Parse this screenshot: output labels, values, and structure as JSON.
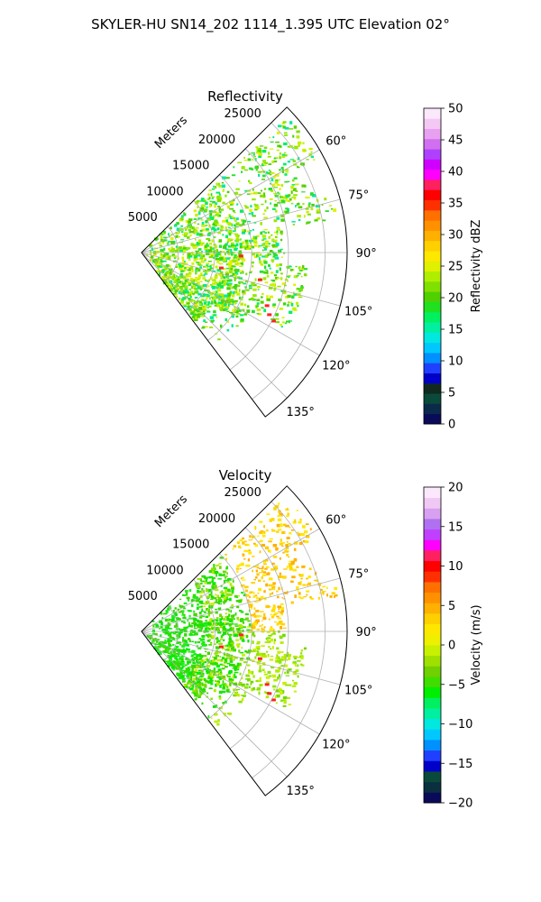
{
  "figure": {
    "suptitle": "SKYLER-HU  SN14_202  1114_1.395 UTC Elevation 02°"
  },
  "chart_data": [
    {
      "type": "heatmap",
      "projection": "polar-sector",
      "title": "Reflectivity",
      "range_label": "Meters",
      "r_ticks": [
        5000,
        10000,
        15000,
        20000,
        25000
      ],
      "r_tick_labels": [
        "5000",
        "10000",
        "15000",
        "20000",
        "25000"
      ],
      "rlim": [
        0,
        28000
      ],
      "theta_range_deg": [
        45,
        143
      ],
      "theta_ticks": [
        60,
        75,
        90,
        105,
        120,
        135
      ],
      "theta_tick_labels": [
        "60°",
        "75°",
        "90°",
        "105°",
        "120°",
        "135°"
      ],
      "grid": true,
      "field": "reflectivity",
      "colorbar": {
        "label": "Reflectivity dBZ",
        "min": 0,
        "max": 50,
        "ticks": [
          0,
          5,
          10,
          15,
          20,
          25,
          30,
          35,
          40,
          45,
          50
        ],
        "tick_labels": [
          "0",
          "5",
          "10",
          "15",
          "20",
          "25",
          "30",
          "35",
          "40",
          "45",
          "50"
        ],
        "colors": [
          "#0a0a5a",
          "#0a2a4a",
          "#0a4a3a",
          "#102a20",
          "#0000c8",
          "#2040ff",
          "#0090ff",
          "#00c8ff",
          "#00e8e0",
          "#00f0a0",
          "#00f060",
          "#20e020",
          "#50d000",
          "#80e000",
          "#b0ee00",
          "#e0f000",
          "#ffe800",
          "#ffd000",
          "#ffb000",
          "#ff9000",
          "#ff7000",
          "#ff3000",
          "#ff0000",
          "#ff2060",
          "#ff00ff",
          "#d000ff",
          "#b040ff",
          "#d070f0",
          "#e8a0f0",
          "#f4c8f4",
          "#fce8fc"
        ]
      }
    },
    {
      "type": "heatmap",
      "projection": "polar-sector",
      "title": "Velocity",
      "range_label": "Meters",
      "r_ticks": [
        5000,
        10000,
        15000,
        20000,
        25000
      ],
      "r_tick_labels": [
        "5000",
        "10000",
        "15000",
        "20000",
        "25000"
      ],
      "rlim": [
        0,
        28000
      ],
      "theta_range_deg": [
        45,
        143
      ],
      "theta_ticks": [
        60,
        75,
        90,
        105,
        120,
        135
      ],
      "theta_tick_labels": [
        "60°",
        "75°",
        "90°",
        "105°",
        "120°",
        "135°"
      ],
      "grid": true,
      "field": "velocity",
      "colorbar": {
        "label": "Velocity (m/s)",
        "min": -20,
        "max": 20,
        "ticks": [
          -20,
          -15,
          -10,
          -5,
          0,
          5,
          10,
          15,
          20
        ],
        "tick_labels": [
          "−20",
          "−15",
          "−10",
          "−5",
          "0",
          "5",
          "10",
          "15",
          "20"
        ],
        "colors": [
          "#0a0a5a",
          "#0a3040",
          "#0a4a3a",
          "#0000c8",
          "#2040ff",
          "#0090ff",
          "#00c8ff",
          "#00e8e0",
          "#00f0a0",
          "#00f060",
          "#00ee00",
          "#40dd00",
          "#70d000",
          "#a0e000",
          "#c8f000",
          "#eef000",
          "#ffe800",
          "#ffd000",
          "#ffb000",
          "#ff9000",
          "#ff7000",
          "#ff3000",
          "#ff0000",
          "#ff2060",
          "#ff00ff",
          "#c040ff",
          "#b070f0",
          "#d8a0f0",
          "#f0c8f4",
          "#fce8fc"
        ]
      }
    }
  ]
}
